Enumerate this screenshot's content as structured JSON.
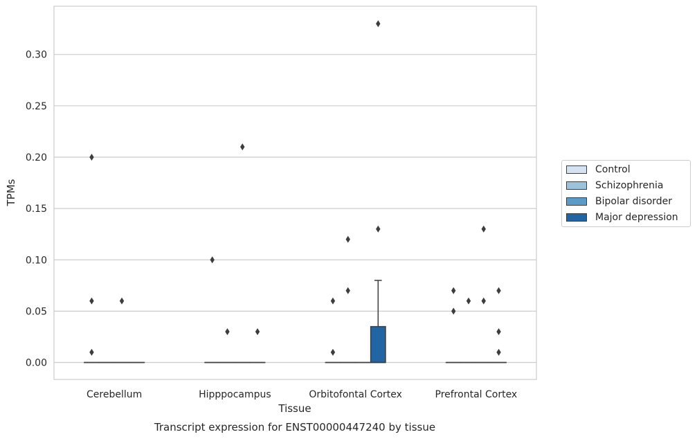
{
  "chart_data": {
    "type": "box",
    "title": "",
    "caption": "Transcript expression for ENST00000447240 by tissue",
    "xlabel": "Tissue",
    "ylabel": "TPMs",
    "categories": [
      "Cerebellum",
      "Hipppocampus",
      "Orbitofontal Cortex",
      "Prefrontal Cortex"
    ],
    "ylim": [
      -0.0165,
      0.347
    ],
    "yticks": [
      0.0,
      0.05,
      0.1,
      0.15,
      0.2,
      0.25,
      0.3
    ],
    "ytick_labels": [
      "0.00",
      "0.05",
      "0.10",
      "0.15",
      "0.20",
      "0.25",
      "0.30"
    ],
    "grid": true,
    "legend_position": "right",
    "series": [
      {
        "name": "Control",
        "color": "#d4e3f1",
        "boxes": [
          {
            "category": "Cerebellum",
            "q1": 0,
            "median": 0,
            "q3": 0,
            "whisker_low": 0,
            "whisker_high": 0,
            "outliers": [
              0.2,
              0.06,
              0.01
            ]
          },
          {
            "category": "Hipppocampus",
            "q1": 0,
            "median": 0,
            "q3": 0,
            "whisker_low": 0,
            "whisker_high": 0,
            "outliers": [
              0.1
            ]
          },
          {
            "category": "Orbitofontal Cortex",
            "q1": 0,
            "median": 0,
            "q3": 0,
            "whisker_low": 0,
            "whisker_high": 0,
            "outliers": [
              0.06,
              0.01
            ]
          },
          {
            "category": "Prefrontal Cortex",
            "q1": 0,
            "median": 0,
            "q3": 0,
            "whisker_low": 0,
            "whisker_high": 0,
            "outliers": [
              0.07,
              0.05
            ]
          }
        ]
      },
      {
        "name": "Schizophrenia",
        "color": "#9dc2dc",
        "boxes": [
          {
            "category": "Cerebellum",
            "q1": 0,
            "median": 0,
            "q3": 0,
            "whisker_low": 0,
            "whisker_high": 0,
            "outliers": []
          },
          {
            "category": "Hipppocampus",
            "q1": 0,
            "median": 0,
            "q3": 0,
            "whisker_low": 0,
            "whisker_high": 0,
            "outliers": [
              0.03
            ]
          },
          {
            "category": "Orbitofontal Cortex",
            "q1": 0,
            "median": 0,
            "q3": 0,
            "whisker_low": 0,
            "whisker_high": 0,
            "outliers": [
              0.12,
              0.07
            ]
          },
          {
            "category": "Prefrontal Cortex",
            "q1": 0,
            "median": 0,
            "q3": 0,
            "whisker_low": 0,
            "whisker_high": 0,
            "outliers": [
              0.06
            ]
          }
        ]
      },
      {
        "name": "Bipolar disorder",
        "color": "#5a9bc7",
        "boxes": [
          {
            "category": "Cerebellum",
            "q1": 0,
            "median": 0,
            "q3": 0,
            "whisker_low": 0,
            "whisker_high": 0,
            "outliers": [
              0.06
            ]
          },
          {
            "category": "Hipppocampus",
            "q1": 0,
            "median": 0,
            "q3": 0,
            "whisker_low": 0,
            "whisker_high": 0,
            "outliers": [
              0.21
            ]
          },
          {
            "category": "Orbitofontal Cortex",
            "q1": 0,
            "median": 0,
            "q3": 0,
            "whisker_low": 0,
            "whisker_high": 0,
            "outliers": []
          },
          {
            "category": "Prefrontal Cortex",
            "q1": 0,
            "median": 0,
            "q3": 0,
            "whisker_low": 0,
            "whisker_high": 0,
            "outliers": [
              0.13,
              0.06
            ]
          }
        ]
      },
      {
        "name": "Major depression",
        "color": "#2265a5",
        "boxes": [
          {
            "category": "Cerebellum",
            "q1": 0,
            "median": 0,
            "q3": 0,
            "whisker_low": 0,
            "whisker_high": 0,
            "outliers": []
          },
          {
            "category": "Hipppocampus",
            "q1": 0,
            "median": 0,
            "q3": 0,
            "whisker_low": 0,
            "whisker_high": 0,
            "outliers": [
              0.03
            ]
          },
          {
            "category": "Orbitofontal Cortex",
            "q1": 0,
            "median": 0,
            "q3": 0.035,
            "whisker_low": 0,
            "whisker_high": 0.08,
            "outliers": [
              0.33,
              0.13
            ]
          },
          {
            "category": "Prefrontal Cortex",
            "q1": 0,
            "median": 0,
            "q3": 0,
            "whisker_low": 0,
            "whisker_high": 0,
            "outliers": [
              0.07,
              0.03,
              0.01
            ]
          }
        ]
      }
    ]
  }
}
